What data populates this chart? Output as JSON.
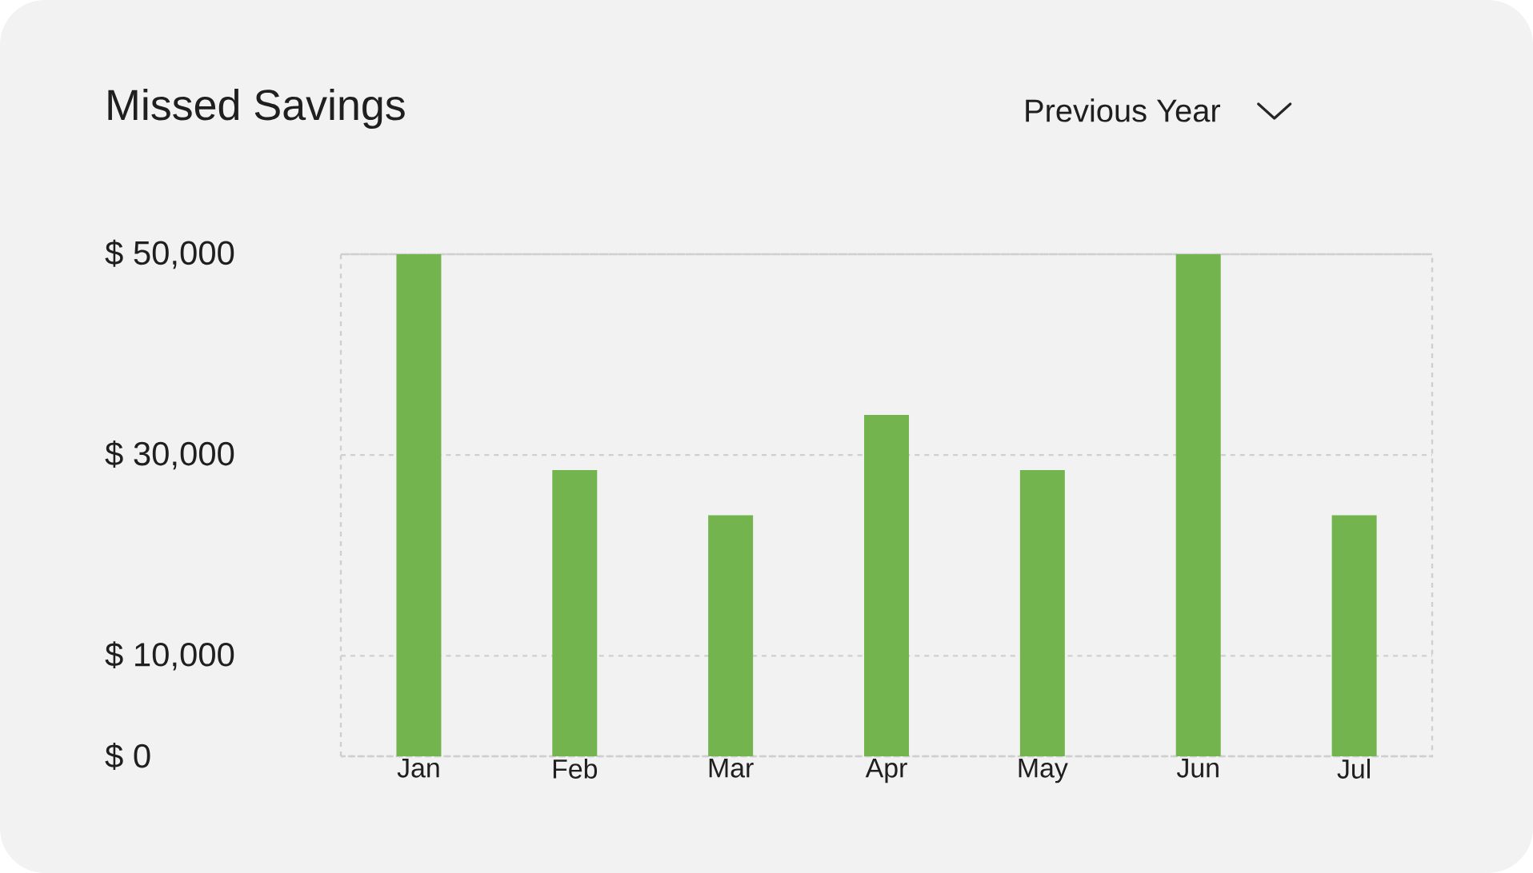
{
  "chart_data": {
    "type": "bar",
    "title": "Missed Savings",
    "annotations": [
      "Previous Year"
    ],
    "categories": [
      "Jan",
      "Feb",
      "Mar",
      "Apr",
      "May",
      "Jun",
      "Jul"
    ],
    "values": [
      50000,
      28500,
      24000,
      34000,
      28500,
      50000,
      24000
    ],
    "color": "#74b44f",
    "ylim": [
      0,
      50000
    ],
    "yticks": [
      {
        "value": 0,
        "label": "$ 0"
      },
      {
        "value": 10000,
        "label": "$ 10,000"
      },
      {
        "value": 30000,
        "label": "$ 30,000"
      },
      {
        "value": 50000,
        "label": "$ 50,000"
      }
    ],
    "grid": "y"
  }
}
